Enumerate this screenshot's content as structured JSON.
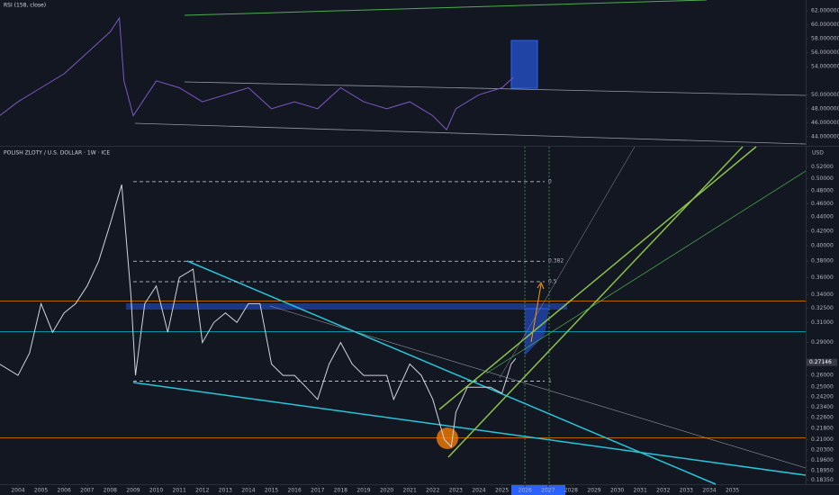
{
  "chart_data": [
    {
      "type": "line",
      "title": "RSI (158, close)",
      "color": "#7e57c2",
      "x": [
        2003.2,
        2004,
        2005,
        2006,
        2007,
        2008,
        2008.4,
        2008.6,
        2009,
        2010,
        2011,
        2012,
        2013,
        2014,
        2015,
        2016,
        2017,
        2018,
        2019,
        2020,
        2021,
        2022,
        2022.6,
        2023,
        2024,
        2025,
        2025.5
      ],
      "values": [
        47,
        49,
        51,
        53,
        56,
        59,
        61,
        52,
        47,
        52,
        51,
        49,
        50,
        51,
        48,
        49,
        48,
        51,
        49,
        48,
        49,
        47,
        45,
        48,
        50,
        51,
        52.5
      ],
      "xlim": [
        2003.22,
        2038.18
      ],
      "ylim": [
        42.7,
        63.3
      ],
      "yticks": [
        {
          "value": 62,
          "label": "62.0000000"
        },
        {
          "value": 60,
          "label": "60.0000000"
        },
        {
          "value": 58,
          "label": "58.0000000"
        },
        {
          "value": 56,
          "label": "56.0000000"
        },
        {
          "value": 54,
          "label": "54.0000000"
        },
        {
          "value": 50,
          "label": "50.0000000"
        },
        {
          "value": 48,
          "label": "48.0000000"
        },
        {
          "value": 46,
          "label": "46.0000000"
        },
        {
          "value": 44,
          "label": "44.0000000"
        }
      ],
      "log_scale": false
    },
    {
      "type": "line",
      "title": "POLISH ZLOTY / U.S. DOLLAR · 1W · ICE",
      "currency": "USD",
      "color": "#d1d4dc",
      "x": [
        2003.2,
        2004,
        2004.5,
        2005,
        2005.5,
        2006,
        2006.5,
        2007,
        2007.5,
        2008,
        2008.5,
        2008.9,
        2009.1,
        2009.5,
        2010,
        2010.5,
        2011,
        2011.6,
        2012,
        2012.5,
        2013,
        2013.5,
        2014,
        2014.5,
        2015,
        2015.5,
        2016,
        2016.5,
        2017,
        2017.5,
        2018,
        2018.5,
        2019,
        2019.5,
        2020,
        2020.3,
        2021,
        2021.5,
        2022,
        2022.5,
        2022.8,
        2023,
        2023.5,
        2024,
        2024.5,
        2025,
        2025.4,
        2025.6
      ],
      "values": [
        0.27,
        0.26,
        0.28,
        0.33,
        0.3,
        0.32,
        0.33,
        0.35,
        0.38,
        0.43,
        0.49,
        0.34,
        0.26,
        0.33,
        0.35,
        0.3,
        0.36,
        0.37,
        0.29,
        0.31,
        0.32,
        0.31,
        0.33,
        0.33,
        0.27,
        0.26,
        0.26,
        0.25,
        0.24,
        0.27,
        0.29,
        0.27,
        0.26,
        0.26,
        0.26,
        0.24,
        0.27,
        0.26,
        0.24,
        0.21,
        0.205,
        0.23,
        0.25,
        0.25,
        0.25,
        0.245,
        0.27,
        0.275
      ],
      "xlim": [
        2003.22,
        2038.18
      ],
      "ylim": [
        0.18,
        0.53
      ],
      "log_scale": true,
      "yticks": [
        {
          "value": 0.52,
          "label": "0.52000"
        },
        {
          "value": 0.5,
          "label": "0.50000"
        },
        {
          "value": 0.48,
          "label": "0.48000"
        },
        {
          "value": 0.46,
          "label": "0.46000"
        },
        {
          "value": 0.44,
          "label": "0.44000"
        },
        {
          "value": 0.42,
          "label": "0.42000"
        },
        {
          "value": 0.4,
          "label": "0.40000"
        },
        {
          "value": 0.38,
          "label": "0.38000"
        },
        {
          "value": 0.36,
          "label": "0.36000"
        },
        {
          "value": 0.34,
          "label": "0.34000"
        },
        {
          "value": 0.325,
          "label": "0.32500"
        },
        {
          "value": 0.31,
          "label": "0.31000"
        },
        {
          "value": 0.29,
          "label": "0.29000"
        },
        {
          "value": 0.26,
          "label": "0.26000"
        },
        {
          "value": 0.25,
          "label": "0.25000"
        },
        {
          "value": 0.242,
          "label": "0.24200"
        },
        {
          "value": 0.234,
          "label": "0.23400"
        },
        {
          "value": 0.226,
          "label": "0.22600"
        },
        {
          "value": 0.218,
          "label": "0.21800"
        },
        {
          "value": 0.21,
          "label": "0.21000"
        },
        {
          "value": 0.203,
          "label": "0.20300"
        },
        {
          "value": 0.196,
          "label": "0.19600"
        },
        {
          "value": 0.1895,
          "label": "0.18950"
        },
        {
          "value": 0.1835,
          "label": "0.18350"
        }
      ],
      "xticks": [
        2004,
        2005,
        2006,
        2007,
        2008,
        2009,
        2010,
        2011,
        2012,
        2013,
        2014,
        2015,
        2016,
        2017,
        2018,
        2019,
        2020,
        2021,
        2022,
        2023,
        2024,
        2025,
        2026,
        2027,
        2028,
        2029,
        2030,
        2031,
        2032,
        2033,
        2034,
        2035
      ],
      "fib_levels": [
        {
          "label": "0",
          "value": 0.495
        },
        {
          "label": "0.382",
          "value": 0.38
        },
        {
          "label": "0.5",
          "value": 0.355
        },
        {
          "label": "1",
          "value": 0.255
        }
      ],
      "last_price": {
        "value": 0.27146,
        "label": "0.27146"
      }
    }
  ]
}
